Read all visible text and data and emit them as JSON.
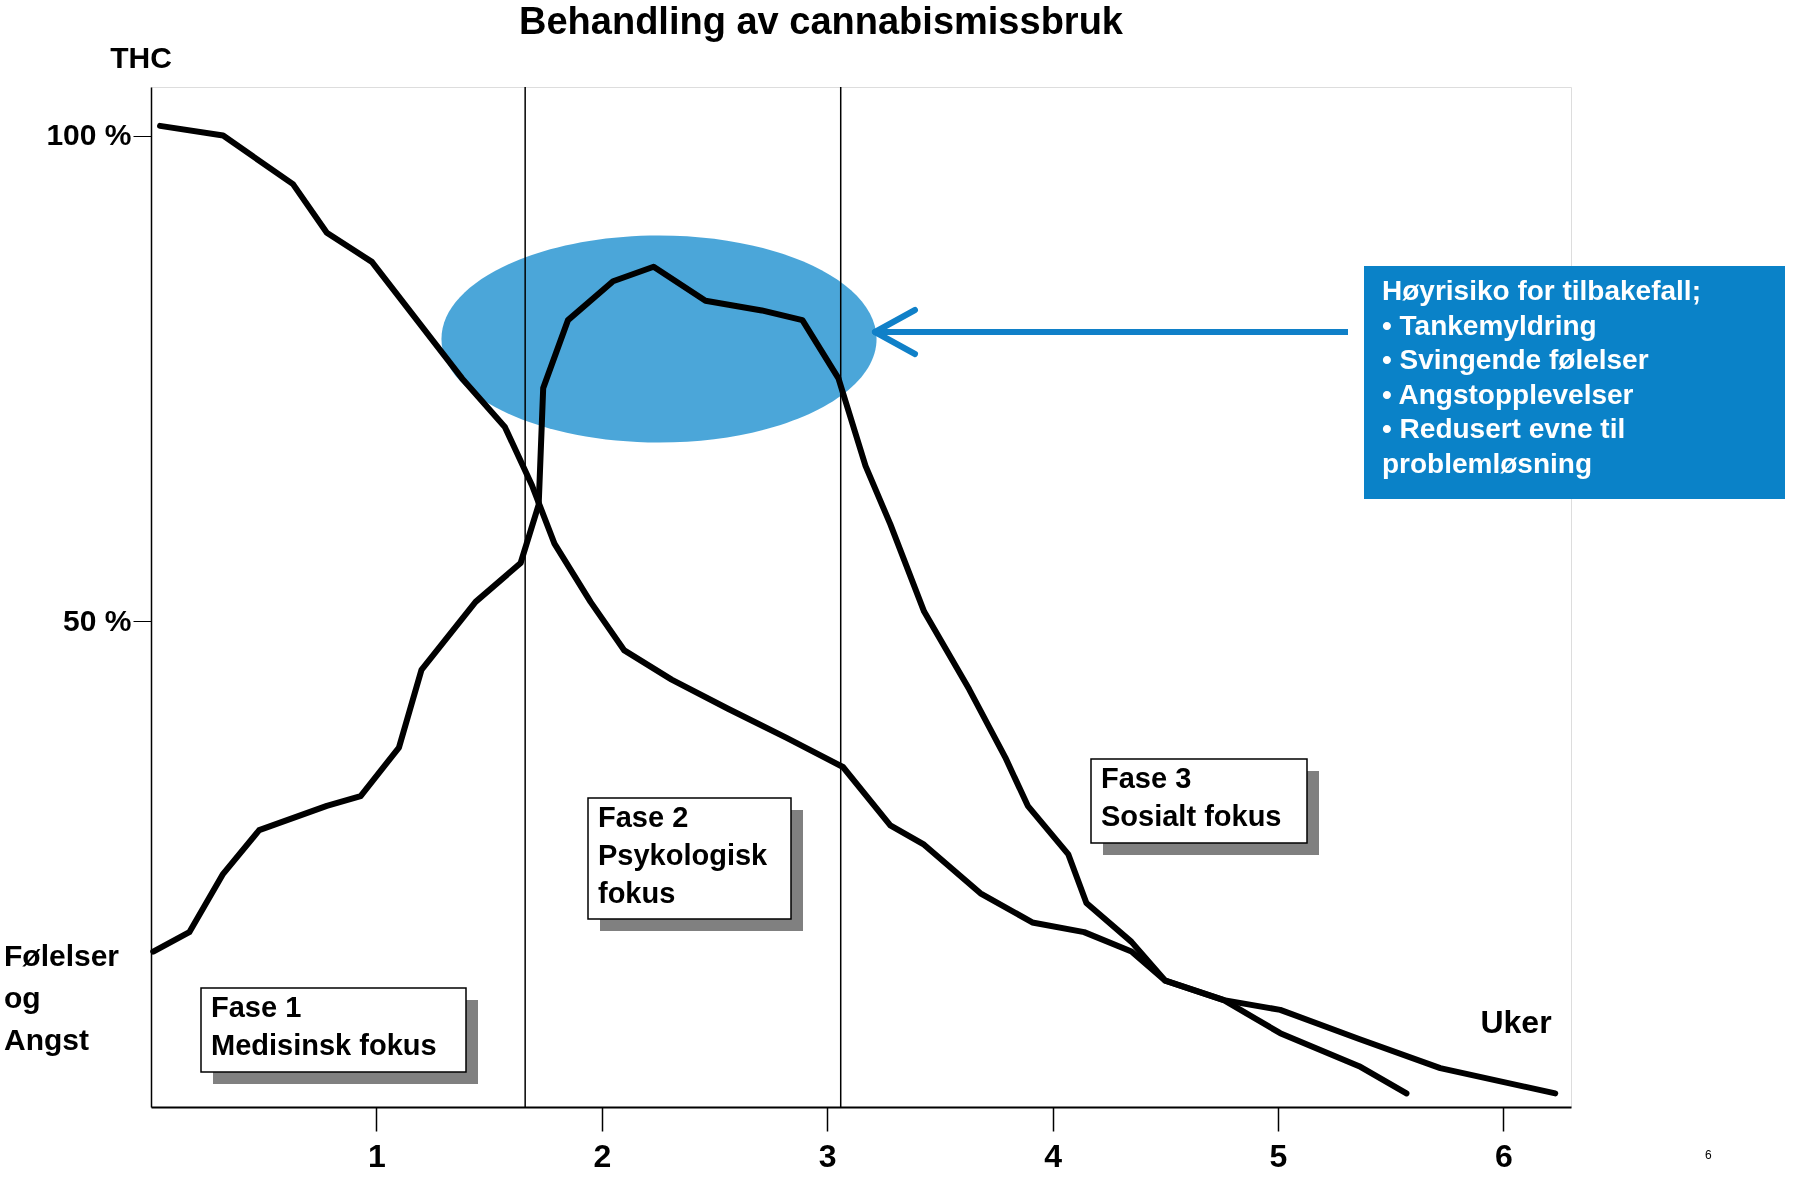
{
  "chart_data": {
    "type": "line",
    "title": "Behandling av cannabismissbruk",
    "xlabel": "Uker",
    "xlim": [
      0,
      6.3
    ],
    "ylim": [
      0,
      105
    ],
    "xticks": [
      1,
      2,
      3,
      4,
      5,
      6
    ],
    "yticks": [
      {
        "value": 50,
        "label": "50 %"
      },
      {
        "value": 100,
        "label": "100 %"
      }
    ],
    "grid": false,
    "legend": false,
    "marker": "none",
    "line_style": "solid",
    "series": [
      {
        "name": "THC",
        "color": "#000000",
        "x": [
          0.04,
          0.32,
          0.63,
          0.78,
          0.98,
          1.18,
          1.38,
          1.57,
          1.69,
          1.79,
          1.95,
          2.1,
          2.31,
          2.56,
          2.82,
          3.07,
          3.28,
          3.43,
          3.68,
          3.91,
          4.14,
          4.35,
          4.5,
          4.76,
          5.01,
          5.36,
          5.72,
          6.23
        ],
        "values": [
          101,
          100,
          95,
          90,
          87,
          81,
          75,
          70,
          64,
          58,
          52,
          47,
          44,
          41,
          38,
          35,
          29,
          27,
          22,
          19,
          18,
          16,
          13,
          11,
          10,
          7,
          4,
          1.4
        ]
      },
      {
        "name": "Følelser og Angst",
        "color": "#000000",
        "x": [
          0.01,
          0.17,
          0.32,
          0.48,
          0.78,
          0.93,
          1.1,
          1.2,
          1.44,
          1.64,
          1.72,
          1.74,
          1.85,
          2.05,
          2.23,
          2.46,
          2.71,
          2.89,
          3.05,
          3.17,
          3.28,
          3.43,
          3.63,
          3.79,
          3.89,
          4.07,
          4.15,
          4.35,
          4.5,
          4.76,
          5.01,
          5.36,
          5.57
        ],
        "values": [
          16,
          18,
          24,
          28.5,
          31,
          32,
          37,
          45,
          52,
          56,
          62,
          74,
          81,
          85,
          86.5,
          83,
          82,
          81,
          75,
          66,
          60,
          51,
          43,
          36,
          31,
          26,
          21,
          17,
          13,
          11,
          7.6,
          4.2,
          1.4
        ]
      }
    ],
    "ref_lines": [
      {
        "axis": "x",
        "value": 1.66,
        "color": "#000000"
      },
      {
        "axis": "x",
        "value": 3.06,
        "color": "#000000"
      }
    ],
    "annotations": [
      "Fase 1\nMedisinsk fokus",
      "Fase 2\nPsykologisk\nfokus",
      "Fase 3\nSosialt fokus",
      "Høyrisiko for tilbakefall;\n•  Tankemyldring\n•  Svingende følelser\n•  Angstopplevelser\n•  Redusert evne til\n    problemløsning",
      "6"
    ]
  }
}
